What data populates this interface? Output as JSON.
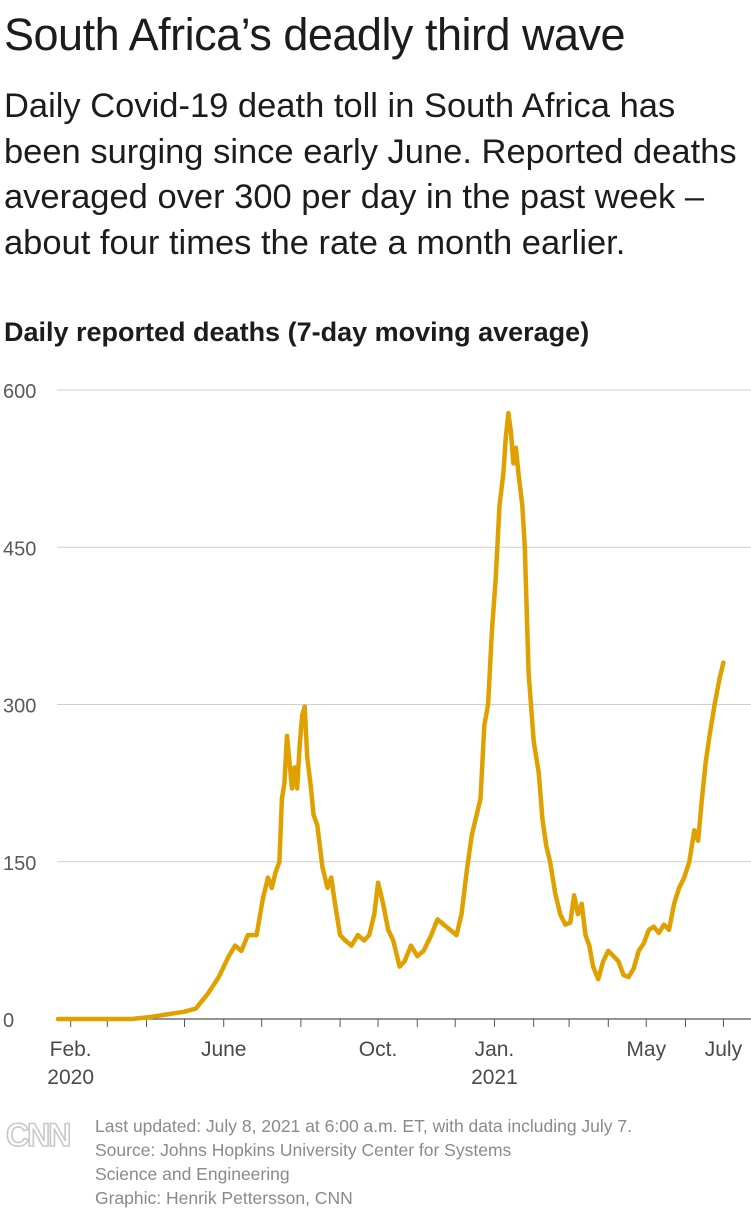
{
  "header": {
    "title": "South Africa’s deadly third wave",
    "subtitle": "Daily Covid-19 death toll in South Africa has been surging since early June. Reported deaths averaged over 300 per day in the past week – about four times the rate a month earlier."
  },
  "chart_data": {
    "type": "line",
    "title": "Daily reported deaths (7-day moving average)",
    "ylim": [
      0,
      600
    ],
    "yticks": [
      "0",
      "150",
      "300",
      "450",
      "600"
    ],
    "grid": "horizontal",
    "x_tick_labels": [
      {
        "line1": "Feb.",
        "line2": "2020",
        "date": "2020-02-01"
      },
      {
        "line1": "June",
        "line2": "",
        "date": "2020-06-01"
      },
      {
        "line1": "Oct.",
        "line2": "",
        "date": "2020-10-01"
      },
      {
        "line1": "Jan.",
        "line2": "2021",
        "date": "2021-01-01"
      },
      {
        "line1": "May",
        "line2": "",
        "date": "2021-05-01"
      },
      {
        "line1": "July",
        "line2": "",
        "date": "2021-07-01"
      }
    ],
    "series": [
      {
        "color": "#e0a000",
        "points": [
          [
            "2020-01-22",
            0
          ],
          [
            "2020-03-20",
            0
          ],
          [
            "2020-04-05",
            2
          ],
          [
            "2020-04-20",
            5
          ],
          [
            "2020-05-01",
            7
          ],
          [
            "2020-05-10",
            10
          ],
          [
            "2020-05-20",
            25
          ],
          [
            "2020-05-28",
            40
          ],
          [
            "2020-06-05",
            60
          ],
          [
            "2020-06-10",
            70
          ],
          [
            "2020-06-15",
            65
          ],
          [
            "2020-06-20",
            80
          ],
          [
            "2020-06-27",
            80
          ],
          [
            "2020-07-02",
            115
          ],
          [
            "2020-07-06",
            135
          ],
          [
            "2020-07-09",
            125
          ],
          [
            "2020-07-12",
            140
          ],
          [
            "2020-07-15",
            150
          ],
          [
            "2020-07-17",
            210
          ],
          [
            "2020-07-19",
            225
          ],
          [
            "2020-07-21",
            270
          ],
          [
            "2020-07-23",
            245
          ],
          [
            "2020-07-25",
            220
          ],
          [
            "2020-07-27",
            240
          ],
          [
            "2020-07-29",
            220
          ],
          [
            "2020-07-31",
            260
          ],
          [
            "2020-08-02",
            290
          ],
          [
            "2020-08-04",
            298
          ],
          [
            "2020-08-06",
            250
          ],
          [
            "2020-08-09",
            220
          ],
          [
            "2020-08-11",
            195
          ],
          [
            "2020-08-14",
            185
          ],
          [
            "2020-08-18",
            145
          ],
          [
            "2020-08-22",
            125
          ],
          [
            "2020-08-25",
            135
          ],
          [
            "2020-08-28",
            110
          ],
          [
            "2020-09-01",
            80
          ],
          [
            "2020-09-05",
            75
          ],
          [
            "2020-09-10",
            70
          ],
          [
            "2020-09-15",
            80
          ],
          [
            "2020-09-20",
            75
          ],
          [
            "2020-09-24",
            80
          ],
          [
            "2020-09-28",
            100
          ],
          [
            "2020-10-01",
            130
          ],
          [
            "2020-10-05",
            110
          ],
          [
            "2020-10-09",
            85
          ],
          [
            "2020-10-13",
            75
          ],
          [
            "2020-10-18",
            50
          ],
          [
            "2020-10-22",
            55
          ],
          [
            "2020-10-27",
            70
          ],
          [
            "2020-11-01",
            60
          ],
          [
            "2020-11-06",
            65
          ],
          [
            "2020-11-12",
            80
          ],
          [
            "2020-11-17",
            95
          ],
          [
            "2020-11-22",
            90
          ],
          [
            "2020-11-27",
            85
          ],
          [
            "2020-12-02",
            80
          ],
          [
            "2020-12-06",
            100
          ],
          [
            "2020-12-10",
            140
          ],
          [
            "2020-12-14",
            175
          ],
          [
            "2020-12-18",
            195
          ],
          [
            "2020-12-21",
            210
          ],
          [
            "2020-12-24",
            280
          ],
          [
            "2020-12-27",
            300
          ],
          [
            "2020-12-30",
            370
          ],
          [
            "2021-01-02",
            420
          ],
          [
            "2021-01-05",
            490
          ],
          [
            "2021-01-08",
            520
          ],
          [
            "2021-01-10",
            555
          ],
          [
            "2021-01-12",
            578
          ],
          [
            "2021-01-14",
            560
          ],
          [
            "2021-01-16",
            530
          ],
          [
            "2021-01-18",
            545
          ],
          [
            "2021-01-20",
            520
          ],
          [
            "2021-01-23",
            490
          ],
          [
            "2021-01-25",
            450
          ],
          [
            "2021-01-28",
            330
          ],
          [
            "2021-02-01",
            265
          ],
          [
            "2021-02-05",
            235
          ],
          [
            "2021-02-08",
            190
          ],
          [
            "2021-02-11",
            165
          ],
          [
            "2021-02-14",
            150
          ],
          [
            "2021-02-18",
            120
          ],
          [
            "2021-02-22",
            100
          ],
          [
            "2021-02-26",
            90
          ],
          [
            "2021-03-02",
            92
          ],
          [
            "2021-03-05",
            118
          ],
          [
            "2021-03-08",
            100
          ],
          [
            "2021-03-11",
            110
          ],
          [
            "2021-03-14",
            80
          ],
          [
            "2021-03-17",
            70
          ],
          [
            "2021-03-20",
            50
          ],
          [
            "2021-03-24",
            38
          ],
          [
            "2021-03-28",
            55
          ],
          [
            "2021-04-01",
            65
          ],
          [
            "2021-04-05",
            60
          ],
          [
            "2021-04-09",
            55
          ],
          [
            "2021-04-13",
            42
          ],
          [
            "2021-04-17",
            40
          ],
          [
            "2021-04-21",
            48
          ],
          [
            "2021-04-25",
            65
          ],
          [
            "2021-04-29",
            72
          ],
          [
            "2021-05-03",
            85
          ],
          [
            "2021-05-07",
            88
          ],
          [
            "2021-05-11",
            82
          ],
          [
            "2021-05-15",
            90
          ],
          [
            "2021-05-19",
            85
          ],
          [
            "2021-05-23",
            110
          ],
          [
            "2021-05-27",
            125
          ],
          [
            "2021-05-31",
            135
          ],
          [
            "2021-06-04",
            150
          ],
          [
            "2021-06-08",
            180
          ],
          [
            "2021-06-11",
            170
          ],
          [
            "2021-06-14",
            210
          ],
          [
            "2021-06-17",
            245
          ],
          [
            "2021-06-20",
            270
          ],
          [
            "2021-06-24",
            300
          ],
          [
            "2021-06-28",
            325
          ],
          [
            "2021-07-01",
            340
          ]
        ]
      }
    ]
  },
  "footer": {
    "updated": "Last updated: July 8, 2021 at 6:00 a.m. ET, with data including July 7.",
    "source_line1": "Source: Johns Hopkins University Center for Systems",
    "source_line2": "Science and Engineering",
    "credit": "Graphic: Henrik Pettersson, CNN",
    "logo_text": "CNN"
  }
}
